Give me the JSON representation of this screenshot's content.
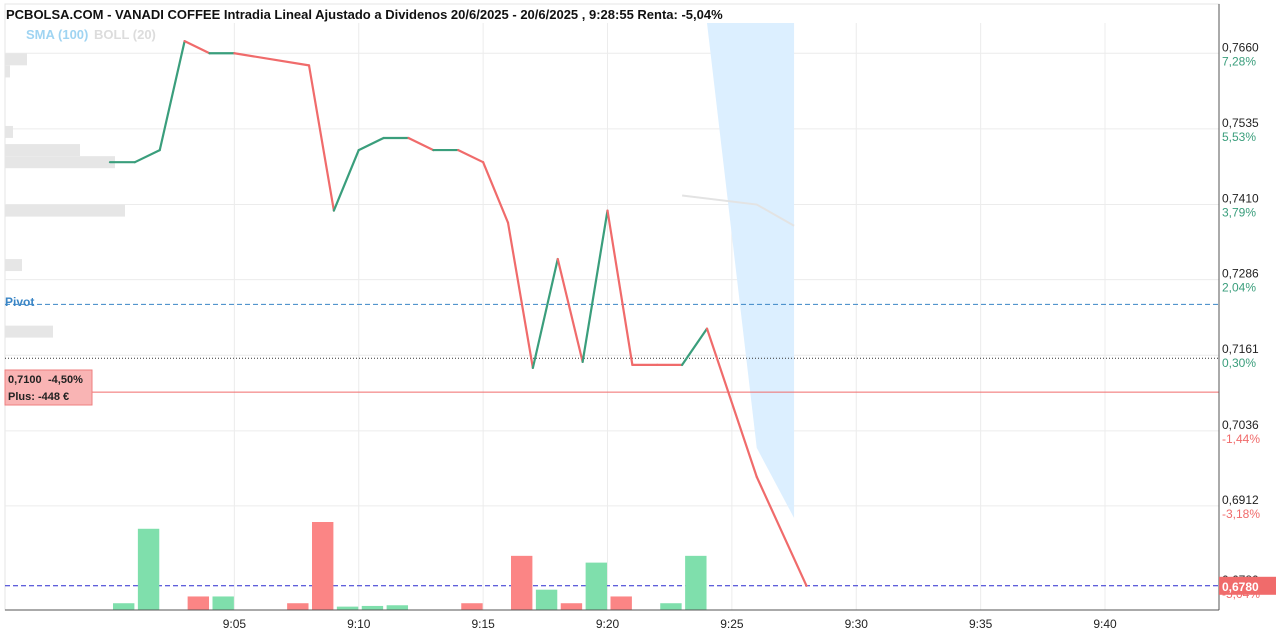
{
  "chart_data": {
    "type": "line",
    "title": "PCBOLSA.COM - VANADI COFFEE Intradia Lineal Ajustado a Dividenos 20/6/2025 - 20/6/2025 , 9:28:55 Renta: -5,04%",
    "legend": [
      {
        "name": "SMA (100)",
        "color": "#9fd4f2"
      },
      {
        "name": "BOLL (20)",
        "color": "#dcdcdc"
      }
    ],
    "x_ticks": [
      "9:05",
      "9:10",
      "9:15",
      "9:20",
      "9:25",
      "9:30",
      "9:35",
      "9:40"
    ],
    "x_range_minutes": [
      0,
      40
    ],
    "y_range": [
      0.674,
      0.771
    ],
    "y_ticks": [
      {
        "value": 0.766,
        "label": "0,7660",
        "pct": "7,28%"
      },
      {
        "value": 0.7535,
        "label": "0,7535",
        "pct": "5,53%"
      },
      {
        "value": 0.741,
        "label": "0,7410",
        "pct": "3,79%"
      },
      {
        "value": 0.7286,
        "label": "0,7286",
        "pct": "2,04%"
      },
      {
        "value": 0.7161,
        "label": "0,7161",
        "pct": "0,30%"
      },
      {
        "value": 0.7036,
        "label": "0,7036",
        "pct": "-1,44%"
      },
      {
        "value": 0.6912,
        "label": "0,6912",
        "pct": "-3,18%"
      },
      {
        "value": 0.678,
        "label": "0,6780",
        "pct": "-5,04%"
      }
    ],
    "series": [
      {
        "name": "Price",
        "x": [
          0,
          1,
          2,
          3,
          4,
          5,
          8,
          9,
          10,
          11,
          12,
          13,
          14,
          15,
          16,
          17,
          18,
          19,
          20,
          21,
          22,
          23,
          24,
          26,
          28
        ],
        "y": [
          0.748,
          0.748,
          0.75,
          0.768,
          0.766,
          0.766,
          0.764,
          0.74,
          0.75,
          0.752,
          0.752,
          0.75,
          0.75,
          0.748,
          0.738,
          0.714,
          0.732,
          0.715,
          0.74,
          0.7145,
          0.7145,
          0.7145,
          0.7205,
          0.696,
          0.678
        ],
        "color_up": "#3a9e7c",
        "color_down": "#f06b6b"
      }
    ],
    "bollinger_band": {
      "x": [
        24,
        26,
        27.5
      ],
      "upper": [
        0.771,
        0.771,
        0.771
      ],
      "lower": [
        0.771,
        0.7008,
        0.6892
      ]
    },
    "boll_mid": {
      "x": [
        23,
        26,
        27.5
      ],
      "y": [
        0.7425,
        0.741,
        0.7375
      ]
    },
    "volume": {
      "x": [
        0,
        1,
        3,
        4,
        7,
        8,
        9,
        10,
        11,
        14,
        16,
        17,
        18,
        19,
        20,
        22,
        23
      ],
      "values": [
        1,
        12,
        2,
        2,
        1,
        13,
        0.5,
        0.6,
        0.7,
        1,
        8,
        3,
        1,
        7,
        2,
        1,
        8
      ],
      "up": [
        true,
        true,
        false,
        true,
        false,
        false,
        true,
        true,
        true,
        false,
        false,
        true,
        false,
        true,
        false,
        true,
        true
      ]
    },
    "volume_profile": [
      {
        "price": 0.765,
        "size": 22
      },
      {
        "price": 0.763,
        "size": 5
      },
      {
        "price": 0.753,
        "size": 8
      },
      {
        "price": 0.75,
        "size": 75
      },
      {
        "price": 0.748,
        "size": 110
      },
      {
        "price": 0.74,
        "size": 120
      },
      {
        "price": 0.731,
        "size": 17
      },
      {
        "price": 0.72,
        "size": 48
      }
    ],
    "pivot": {
      "label": "Pivot",
      "value": 0.7245
    },
    "reference_close": 0.7156,
    "position": {
      "price": 0.71,
      "price_label": "0,7100",
      "pct_label": "-4,50%",
      "plus_label": "Plus: -448 €"
    },
    "last_price": {
      "value": 0.678,
      "label": "0,6780"
    },
    "grid": true
  }
}
